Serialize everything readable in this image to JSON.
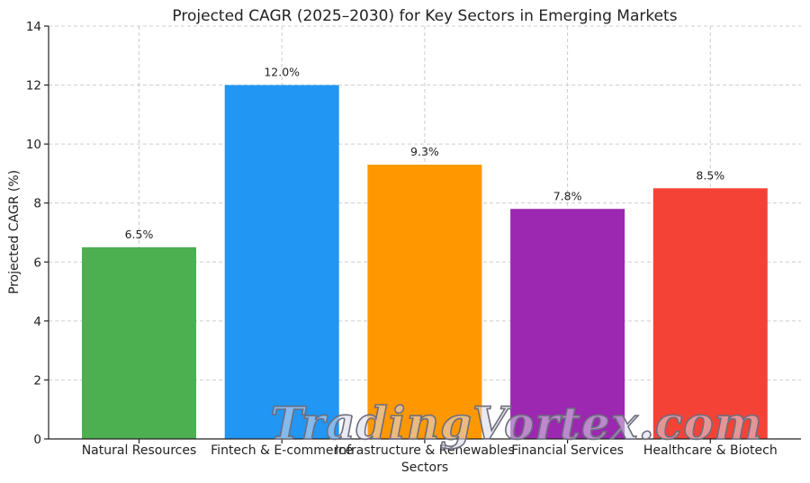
{
  "chart_data": {
    "type": "bar",
    "title": "Projected CAGR (2025–2030) for Key Sectors in Emerging Markets",
    "xlabel": "Sectors",
    "ylabel": "Projected CAGR (%)",
    "ylim": [
      0,
      14
    ],
    "yticks": [
      0,
      2,
      4,
      6,
      8,
      10,
      12,
      14
    ],
    "grid": true,
    "categories": [
      "Natural Resources",
      "Fintech & E-commerce",
      "Infrastructure & Renewables",
      "Financial Services",
      "Healthcare & Biotech"
    ],
    "values": [
      6.5,
      12.0,
      9.3,
      7.8,
      8.5
    ],
    "value_labels": [
      "6.5%",
      "12.0%",
      "9.3%",
      "7.8%",
      "8.5%"
    ],
    "colors": [
      "#4caf50",
      "#2196f3",
      "#ff9800",
      "#9c27b0",
      "#f44336"
    ]
  },
  "watermark": "TradingVortex.com"
}
